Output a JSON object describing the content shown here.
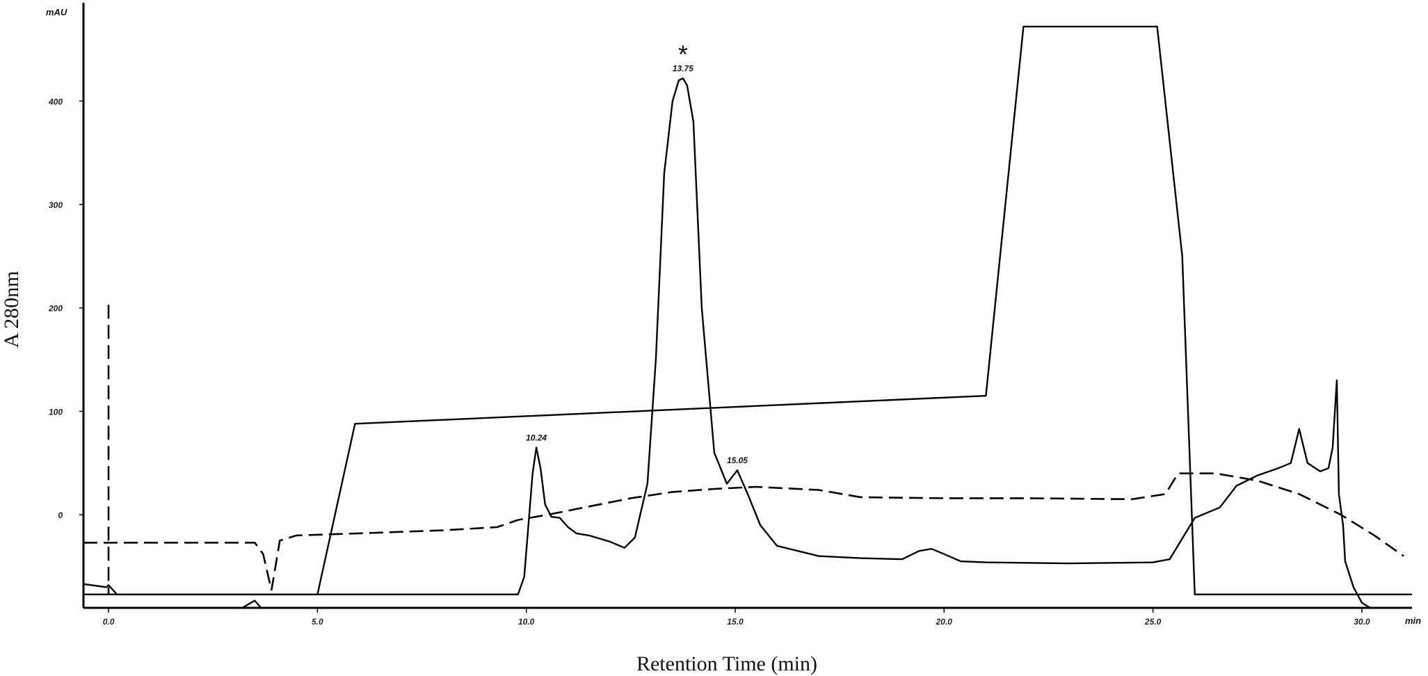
{
  "chart_data": {
    "type": "line",
    "title": "",
    "xlabel": "Retention Time (min)",
    "ylabel": "A 280nm",
    "y_unit": "mAU",
    "x_unit": "min",
    "xlim": [
      -0.6,
      31.2
    ],
    "ylim": [
      -90,
      495
    ],
    "x_ticks": [
      0,
      5,
      10,
      15,
      20,
      25,
      30
    ],
    "x_tick_labels": [
      "0.0",
      "5.0",
      "10.0",
      "15.0",
      "20.0",
      "25.0",
      "30.0"
    ],
    "y_ticks": [
      0,
      100,
      200,
      300,
      400
    ],
    "y_tick_labels": [
      "0",
      "100",
      "200",
      "300",
      "400"
    ],
    "grid": false,
    "peak_labels": [
      {
        "x": 10.24,
        "y": 65,
        "label": "10.24"
      },
      {
        "x": 13.75,
        "y": 422,
        "label": "13.75"
      },
      {
        "x": 15.05,
        "y": 43,
        "label": "15.05"
      }
    ],
    "marker": {
      "x": 13.75,
      "label": "*"
    },
    "series": [
      {
        "style": "solid",
        "x": [
          -0.6,
          -0.05,
          0,
          0.2,
          9.8,
          9.95,
          10.05,
          10.15,
          10.24,
          10.34,
          10.45,
          10.6,
          10.8,
          11.0,
          11.2,
          11.5,
          12.0,
          12.35,
          12.6,
          12.9,
          13.1,
          13.3,
          13.5,
          13.65,
          13.75,
          13.85,
          14.0,
          14.2,
          14.5,
          14.8,
          15.05,
          15.3,
          15.6,
          16.0,
          16.5,
          17.0,
          18.0,
          19.0,
          19.4,
          19.7,
          20.0,
          20.4,
          21.0,
          23.0,
          25.0,
          25.4,
          26.0,
          26.6,
          27.0,
          27.5,
          28.0,
          28.3,
          28.5,
          28.7,
          29.0,
          29.2,
          29.3,
          29.4,
          29.45,
          29.5,
          29.55,
          29.6,
          29.8,
          30.0,
          30.2,
          30.5,
          30.8
        ],
        "y": [
          -67,
          -70,
          -68,
          -77,
          -77,
          -60,
          -10,
          40,
          65,
          45,
          10,
          -2,
          -3,
          -12,
          -18,
          -20,
          -26,
          -32,
          -22,
          30,
          150,
          330,
          400,
          420,
          422,
          415,
          380,
          200,
          60,
          30,
          43,
          20,
          -10,
          -30,
          -35,
          -40,
          -42,
          -43,
          -35,
          -33,
          -38,
          -45,
          -46,
          -47,
          -46,
          -43,
          -3,
          7,
          28,
          38,
          45,
          50,
          83,
          50,
          42,
          45,
          65,
          130,
          20,
          5,
          -10,
          -45,
          -70,
          -85,
          -90,
          -90,
          -90
        ],
        "extra_fragment": {
          "x": [
            3.2,
            3.5,
            3.65
          ],
          "y": [
            -90,
            -83,
            -90
          ]
        }
      },
      {
        "style": "solid",
        "x": [
          -0.6,
          4.4,
          5.0,
          5.9,
          21.0,
          21.9,
          25.1,
          25.7,
          26.0,
          31.2
        ],
        "y": [
          -77,
          -77,
          -77,
          88,
          115,
          472,
          472,
          250,
          -77,
          -77
        ]
      },
      {
        "style": "dashed",
        "x": [
          -0.6,
          3.5,
          3.7,
          3.9,
          4.1,
          4.5,
          6.0,
          8.0,
          9.3,
          9.8,
          10.5,
          11.5,
          12.5,
          13.5,
          14.5,
          15.5,
          17.0,
          18.0,
          20.0,
          22.0,
          24.5,
          25.3,
          25.6,
          26.5,
          27.5,
          28.5,
          29.5,
          30.3,
          31.0
        ],
        "y": [
          -27,
          -27,
          -38,
          -73,
          -25,
          -20,
          -18,
          -15,
          -12,
          -5,
          0,
          8,
          16,
          22,
          25,
          27,
          24,
          17,
          16,
          16,
          15,
          20,
          40,
          40,
          33,
          20,
          0,
          -20,
          -40
        ]
      }
    ],
    "injection_mark": {
      "x": 0,
      "y_top": 203,
      "y_bottom": -77
    }
  }
}
